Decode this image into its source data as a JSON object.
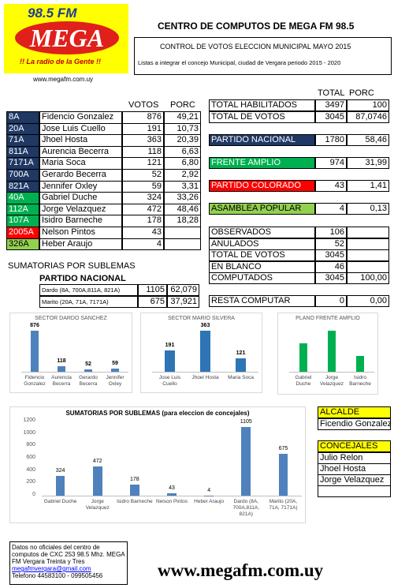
{
  "header": {
    "logo_top": "98.5 FM",
    "logo_name": "MEGA",
    "slogan": "!! La radio de la Gente !!",
    "logo_url": "www.megafm.com.uy",
    "title": "CENTRO DE COMPUTOS DE MEGA FM 98.5",
    "subtitle": "CONTROL DE VOTOS ELECCION MUNICIPAL MAYO 2015",
    "note": "Listas a integrar el concejo Municipal, ciudad de Vergara periodo 2015 - 2020"
  },
  "lists": {
    "headers": [
      "VOTOS",
      "PORC"
    ],
    "rows": [
      {
        "list": "8A",
        "name": "Fidencio Gonzalez",
        "votes": "876",
        "porc": "49,21",
        "color": "#1f3864"
      },
      {
        "list": "20A",
        "name": "Jose Luis Cuello",
        "votes": "191",
        "porc": "10,73",
        "color": "#1f3864"
      },
      {
        "list": "71A",
        "name": "Jhoel Hosta",
        "votes": "363",
        "porc": "20,39",
        "color": "#1f3864"
      },
      {
        "list": "811A",
        "name": "Aurencia Becerra",
        "votes": "118",
        "porc": "6,63",
        "color": "#1f3864"
      },
      {
        "list": "7171A",
        "name": "Maria Soca",
        "votes": "121",
        "porc": "6,80",
        "color": "#1f3864"
      },
      {
        "list": "700A",
        "name": "Gerardo Becerra",
        "votes": "52",
        "porc": "2,92",
        "color": "#1f3864"
      },
      {
        "list": "821A",
        "name": "Jennifer Oxley",
        "votes": "59",
        "porc": "3,31",
        "color": "#1f3864"
      },
      {
        "list": "40A",
        "name": "Gabriel Duche",
        "votes": "324",
        "porc": "33,26",
        "color": "#00b050"
      },
      {
        "list": "112A",
        "name": "Jorge Velazquez",
        "votes": "472",
        "porc": "48,46",
        "color": "#00b050"
      },
      {
        "list": "107A",
        "name": "Isidro Barneche",
        "votes": "178",
        "porc": "18,28",
        "color": "#00b050"
      },
      {
        "list": "2005A",
        "name": "Nelson Pintos",
        "votes": "43",
        "color": "#ff0000"
      },
      {
        "list": "326A",
        "name": "Heber Araujo",
        "votes": "4",
        "color": "#92d050"
      }
    ]
  },
  "totals": {
    "headers": [
      "TOTAL",
      "PORC"
    ],
    "rows": [
      {
        "label": "TOTAL HABILITADOS",
        "total": "3497",
        "porc": "100"
      },
      {
        "label": "TOTAL  DE VOTOS",
        "total": "3045",
        "porc": "87,0746"
      },
      {
        "label": "PARTIDO NACIONAL",
        "total": "1780",
        "porc": "58,46",
        "color": "#1f3864"
      },
      {
        "label": "FRENTE AMPLIO",
        "total": "974",
        "porc": "31,99",
        "color": "#00b050"
      },
      {
        "label": "PARTIDO COLORADO",
        "total": "43",
        "porc": "1,41",
        "color": "#ff0000"
      },
      {
        "label": "ASAMBLEA POPULAR",
        "total": "4",
        "porc": "0,13",
        "color": "#92d050"
      },
      {
        "label": "OBSERVADOS",
        "total": "106"
      },
      {
        "label": "ANULADOS",
        "total": "52"
      },
      {
        "label": "TOTAL DE VOTOS",
        "total": "3045"
      },
      {
        "label": "EN BLANCO",
        "total": "46"
      },
      {
        "label": "COMPUTADOS",
        "total": "3045",
        "porc": "100,00"
      },
      {
        "label": "RESTA COMPUTAR",
        "total": "0",
        "porc": "0,00"
      }
    ]
  },
  "sublemas": {
    "title": "SUMATORIAS POR SUBLEMAS",
    "party": "PARTIDO NACIONAL",
    "rows": [
      {
        "label": "Dardo (8A, 700A,811A, 821A)",
        "total": "1105",
        "porc": "62,079"
      },
      {
        "label": "Marito (20A, 71A, 7171A)",
        "total": "675",
        "porc": "37,921"
      }
    ]
  },
  "charts": [
    {
      "type": "bar",
      "title": "SECTOR DARDO SANCHEZ",
      "categories": [
        "Fidencio Gonzalez",
        "Aurencia Becerra",
        "Gerardo Becerra",
        "Jennifer Oxley"
      ],
      "values": [
        876,
        118,
        52,
        59
      ],
      "color": "#4f81bd",
      "data_labels": true
    },
    {
      "type": "bar",
      "title": "SECTOR MARIO SILVERA",
      "categories": [
        "Jose Luis Cuello",
        "Jhoel Hosta",
        "Maria Soca"
      ],
      "values": [
        191,
        363,
        121
      ],
      "color": "#2e75b6",
      "data_labels": true
    },
    {
      "type": "bar",
      "title": "PLANO FRENTE AMPLIO",
      "categories": [
        "Gabriel Duche",
        "Jorge Velazquez",
        "Isidro Barneche"
      ],
      "values": [
        324,
        472,
        178
      ],
      "color": "#00b050",
      "data_labels": false
    },
    {
      "type": "bar",
      "title": "SUMATORIAS POR SUBLEMAS (para eleccion de concejales)",
      "categories": [
        "Gabriel Duche",
        "Jorge Velazquez",
        "Isidro Barneche",
        "Nelson Pintos",
        "Heber Araujo",
        "Dardo (8A, 700A,811A, 821A)",
        "Marito (20A, 71A, 7171A)"
      ],
      "values": [
        324,
        472,
        178,
        43,
        4,
        1105,
        675
      ],
      "color": "#4f81bd",
      "data_labels": true,
      "ylim": [
        0,
        1200
      ],
      "yticks": [
        0,
        200,
        400,
        600,
        800,
        1000,
        1200
      ]
    }
  ],
  "results": {
    "alcalde_title": "ALCALDE",
    "alcalde": "Ficendio Gonzalez",
    "concejales_title": "CONCEJALES",
    "concejales": [
      "Julio Relon",
      "Jhoel Hosta",
      "Jorge Velazquez"
    ]
  },
  "footer": {
    "lines": [
      "Datos  no oficiales del centro de computos de CXC 253 98.5 Mhz. MEGA FM Vergara Treinta y Tres"
    ],
    "email": "megafmvergara@gmail.com",
    "phone": "Telefono 44583100 - 099505456",
    "url": "www.megafm.com.uy"
  }
}
